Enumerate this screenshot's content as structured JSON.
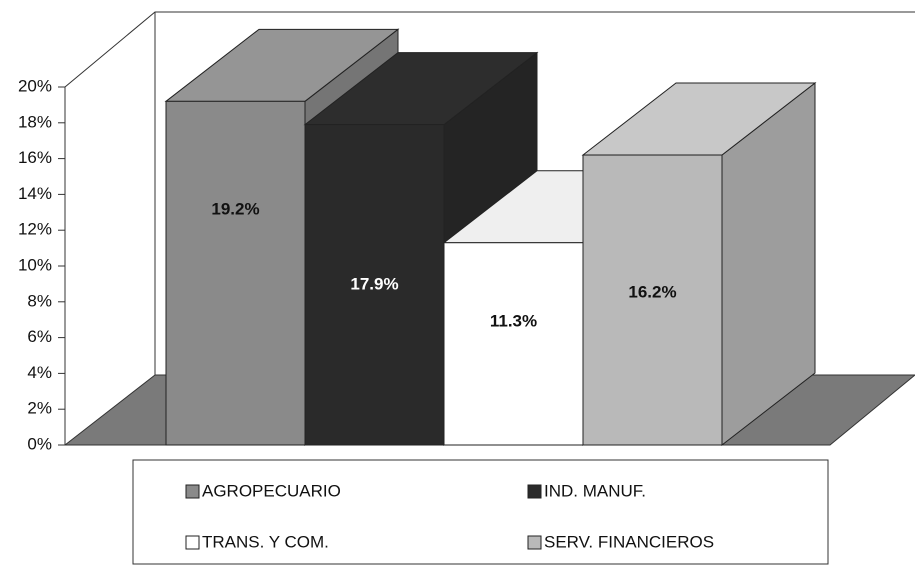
{
  "chart_data": {
    "type": "bar3d",
    "categories": [
      "AGROPECUARIO",
      "IND. MANUF.",
      "TRANS. Y COM.",
      "SERV. FINANCIEROS"
    ],
    "values": [
      19.2,
      17.9,
      11.3,
      16.2
    ],
    "value_labels": [
      "19.2%",
      "17.9%",
      "11.3%",
      "16.2%"
    ],
    "colors": [
      "#8a8a8a",
      "#2a2a2a",
      "#ffffff",
      "#b9b9b9"
    ],
    "ylim": [
      0,
      20
    ],
    "yticks": [
      {
        "value": 0,
        "label": "0%"
      },
      {
        "value": 2,
        "label": "2%"
      },
      {
        "value": 4,
        "label": "4%"
      },
      {
        "value": 6,
        "label": "6%"
      },
      {
        "value": 8,
        "label": "8%"
      },
      {
        "value": 10,
        "label": "10%"
      },
      {
        "value": 12,
        "label": "12%"
      },
      {
        "value": 14,
        "label": "14%"
      },
      {
        "value": 16,
        "label": "16%"
      },
      {
        "value": 18,
        "label": "18%"
      },
      {
        "value": 20,
        "label": "20%"
      }
    ],
    "legend": "bottom"
  }
}
